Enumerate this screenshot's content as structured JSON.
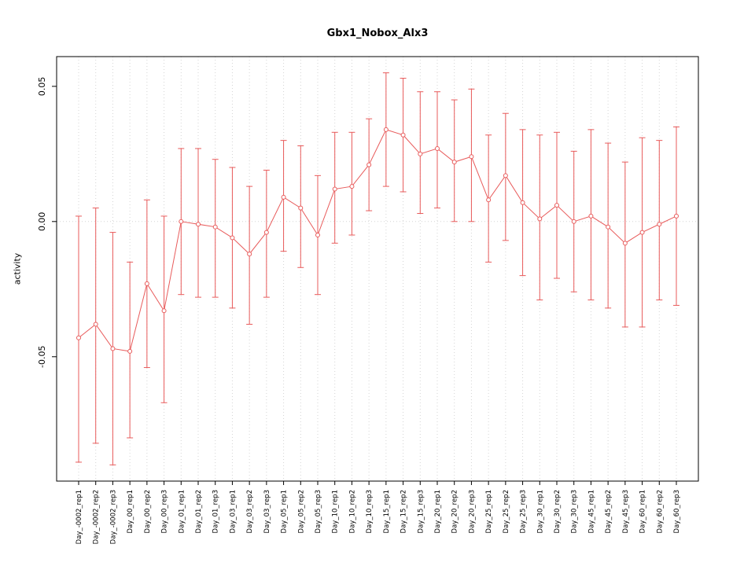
{
  "chart_data": {
    "type": "line",
    "title": "Gbx1_Nobox_Alx3",
    "xlabel": "",
    "ylabel": "activity",
    "ylim": [
      -0.096,
      0.061
    ],
    "yticks": [
      -0.05,
      0,
      0.05
    ],
    "ytick_labels": [
      "-0.05",
      "0.00",
      "0.05"
    ],
    "grid": "vertical-dotted-per-category-plus-dotted-zero-line",
    "legend": "none",
    "point_style": "open-circle",
    "error_bars": true,
    "colors": {
      "series": "#e85b5b",
      "grid": "#d4d4d4",
      "axis": "#000000",
      "background": "#ffffff"
    },
    "categories": [
      "Day_-0002_rep1",
      "Day_-0002_rep2",
      "Day_-0002_rep3",
      "Day_00_rep1",
      "Day_00_rep2",
      "Day_00_rep3",
      "Day_01_rep1",
      "Day_01_rep2",
      "Day_01_rep3",
      "Day_03_rep1",
      "Day_03_rep2",
      "Day_03_rep3",
      "Day_05_rep1",
      "Day_05_rep2",
      "Day_05_rep3",
      "Day_10_rep1",
      "Day_10_rep2",
      "Day_10_rep3",
      "Day_15_rep1",
      "Day_15_rep2",
      "Day_15_rep3",
      "Day_20_rep1",
      "Day_20_rep2",
      "Day_20_rep3",
      "Day_25_rep1",
      "Day_25_rep2",
      "Day_25_rep3",
      "Day_30_rep1",
      "Day_30_rep2",
      "Day_30_rep3",
      "Day_45_rep1",
      "Day_45_rep2",
      "Day_45_rep3",
      "Day_60_rep1",
      "Day_60_rep2",
      "Day_60_rep3"
    ],
    "values": [
      -0.043,
      -0.038,
      -0.047,
      -0.048,
      -0.023,
      -0.033,
      0.0,
      -0.001,
      -0.002,
      -0.006,
      -0.012,
      -0.004,
      0.009,
      0.005,
      -0.005,
      0.012,
      0.013,
      0.021,
      0.034,
      0.032,
      0.025,
      0.027,
      0.022,
      0.024,
      0.008,
      0.017,
      0.007,
      0.001,
      0.006,
      0.0,
      0.002,
      -0.002,
      -0.008,
      -0.004,
      -0.001,
      0.002
    ],
    "error_high": [
      0.002,
      0.005,
      -0.004,
      -0.015,
      0.008,
      0.002,
      0.027,
      0.027,
      0.023,
      0.02,
      0.013,
      0.019,
      0.03,
      0.028,
      0.017,
      0.033,
      0.033,
      0.038,
      0.055,
      0.053,
      0.048,
      0.048,
      0.045,
      0.049,
      0.032,
      0.04,
      0.034,
      0.032,
      0.033,
      0.026,
      0.034,
      0.029,
      0.022,
      0.031,
      0.03,
      0.035
    ],
    "error_low": [
      -0.089,
      -0.082,
      -0.09,
      -0.08,
      -0.054,
      -0.067,
      -0.027,
      -0.028,
      -0.028,
      -0.032,
      -0.038,
      -0.028,
      -0.011,
      -0.017,
      -0.027,
      -0.008,
      -0.005,
      0.004,
      0.013,
      0.011,
      0.003,
      0.005,
      0.0,
      0.0,
      -0.015,
      -0.007,
      -0.02,
      -0.029,
      -0.021,
      -0.026,
      -0.029,
      -0.032,
      -0.039,
      -0.039,
      -0.029,
      -0.031
    ]
  }
}
